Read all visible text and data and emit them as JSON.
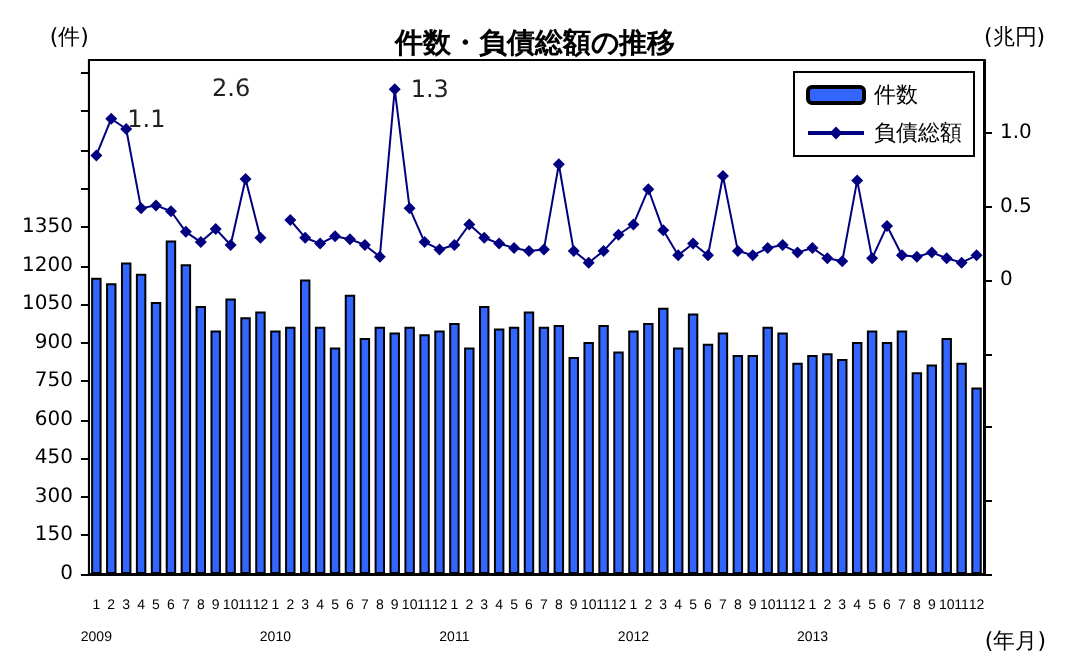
{
  "chart_data": {
    "type": "bar",
    "title": "件数・負債総額の推移",
    "xlabel": "(年月)",
    "ylabel": "(件)",
    "y2label": "(兆円)",
    "categories": [
      "1\n2009",
      "2",
      "3",
      "4",
      "5",
      "6",
      "7",
      "8",
      "9",
      "10",
      "11",
      "12",
      "1\n2010",
      "2",
      "3",
      "4",
      "5",
      "6",
      "7",
      "8",
      "9",
      "10",
      "11",
      "12",
      "1\n2011",
      "2",
      "3",
      "4",
      "5",
      "6",
      "7",
      "8",
      "9",
      "10",
      "11",
      "12",
      "1\n2012",
      "2",
      "3",
      "4",
      "5",
      "6",
      "7",
      "8",
      "9",
      "10",
      "11",
      "12",
      "1\n2013",
      "2",
      "3",
      "4",
      "5",
      "6",
      "7",
      "8",
      "9",
      "10",
      "11",
      "12"
    ],
    "series": [
      {
        "name": "件数",
        "color": "#3366ff",
        "values": [
          1153,
          1131,
          1212,
          1168,
          1058,
          1298,
          1205,
          1043,
          947,
          1072,
          999,
          1021,
          947,
          962,
          1146,
          962,
          881,
          1087,
          918,
          962,
          940,
          962,
          933,
          947,
          977,
          881,
          1043,
          955,
          962,
          1021,
          962,
          969,
          844,
          903,
          969,
          866,
          947,
          977,
          1036,
          881,
          1014,
          896,
          940,
          852,
          852,
          962,
          940,
          822,
          852,
          859,
          837,
          903,
          947,
          903,
          947,
          785,
          815,
          918,
          822,
          726
        ]
      },
      {
        "name": "負債総額",
        "type": "line",
        "axis": "y2",
        "color": "#000080",
        "marker": "diamond",
        "values": [
          0.85,
          1.1,
          1.03,
          0.49,
          0.51,
          0.47,
          0.33,
          0.26,
          0.35,
          0.24,
          0.69,
          0.29,
          null,
          0.41,
          0.29,
          0.25,
          0.3,
          0.28,
          0.24,
          0.16,
          1.3,
          0.49,
          0.26,
          0.21,
          0.24,
          0.38,
          0.29,
          0.25,
          0.22,
          0.2,
          0.21,
          0.79,
          0.2,
          0.12,
          0.2,
          0.31,
          0.38,
          0.62,
          0.34,
          0.17,
          0.25,
          0.17,
          0.71,
          0.2,
          0.17,
          0.22,
          0.24,
          0.19,
          0.22,
          0.15,
          0.13,
          0.68,
          0.15,
          0.37,
          0.17,
          0.16,
          0.19,
          0.15,
          0.12,
          0.17
        ],
        "value_labels": [
          null,
          "1.1",
          null,
          null,
          null,
          null,
          null,
          null,
          null,
          null,
          null,
          null,
          null,
          null,
          null,
          null,
          null,
          null,
          null,
          null,
          "1.3",
          null,
          null,
          null,
          null,
          null,
          null,
          null,
          null,
          null,
          null,
          null,
          null,
          null,
          null,
          null,
          null,
          null,
          null,
          null,
          null,
          null,
          null,
          null,
          null,
          null,
          null,
          null,
          null,
          null,
          null,
          null,
          null,
          null,
          null,
          null,
          null,
          null,
          null,
          null
        ]
      }
    ],
    "ylim": [
      0,
      2000
    ],
    "yticks": [
      0,
      150,
      300,
      450,
      600,
      750,
      900,
      1050,
      1200,
      1350,
      {
        "value": 1500,
        "label": null
      },
      {
        "value": 1650,
        "label": null
      },
      {
        "value": 1800,
        "label": null
      },
      {
        "value": 1950,
        "label": null
      }
    ],
    "y2lim": [
      -2,
      1.5
    ],
    "y2ticks": [
      {
        "value": -2,
        "label": null
      },
      {
        "value": -1.5,
        "label": null
      },
      {
        "value": -1,
        "label": null
      },
      {
        "value": -0.5,
        "label": null
      },
      0,
      0.5,
      {
        "value": 1,
        "label": "1.0"
      }
    ],
    "annotations": [
      "2.6"
    ],
    "legend": "top right",
    "grid": false
  }
}
